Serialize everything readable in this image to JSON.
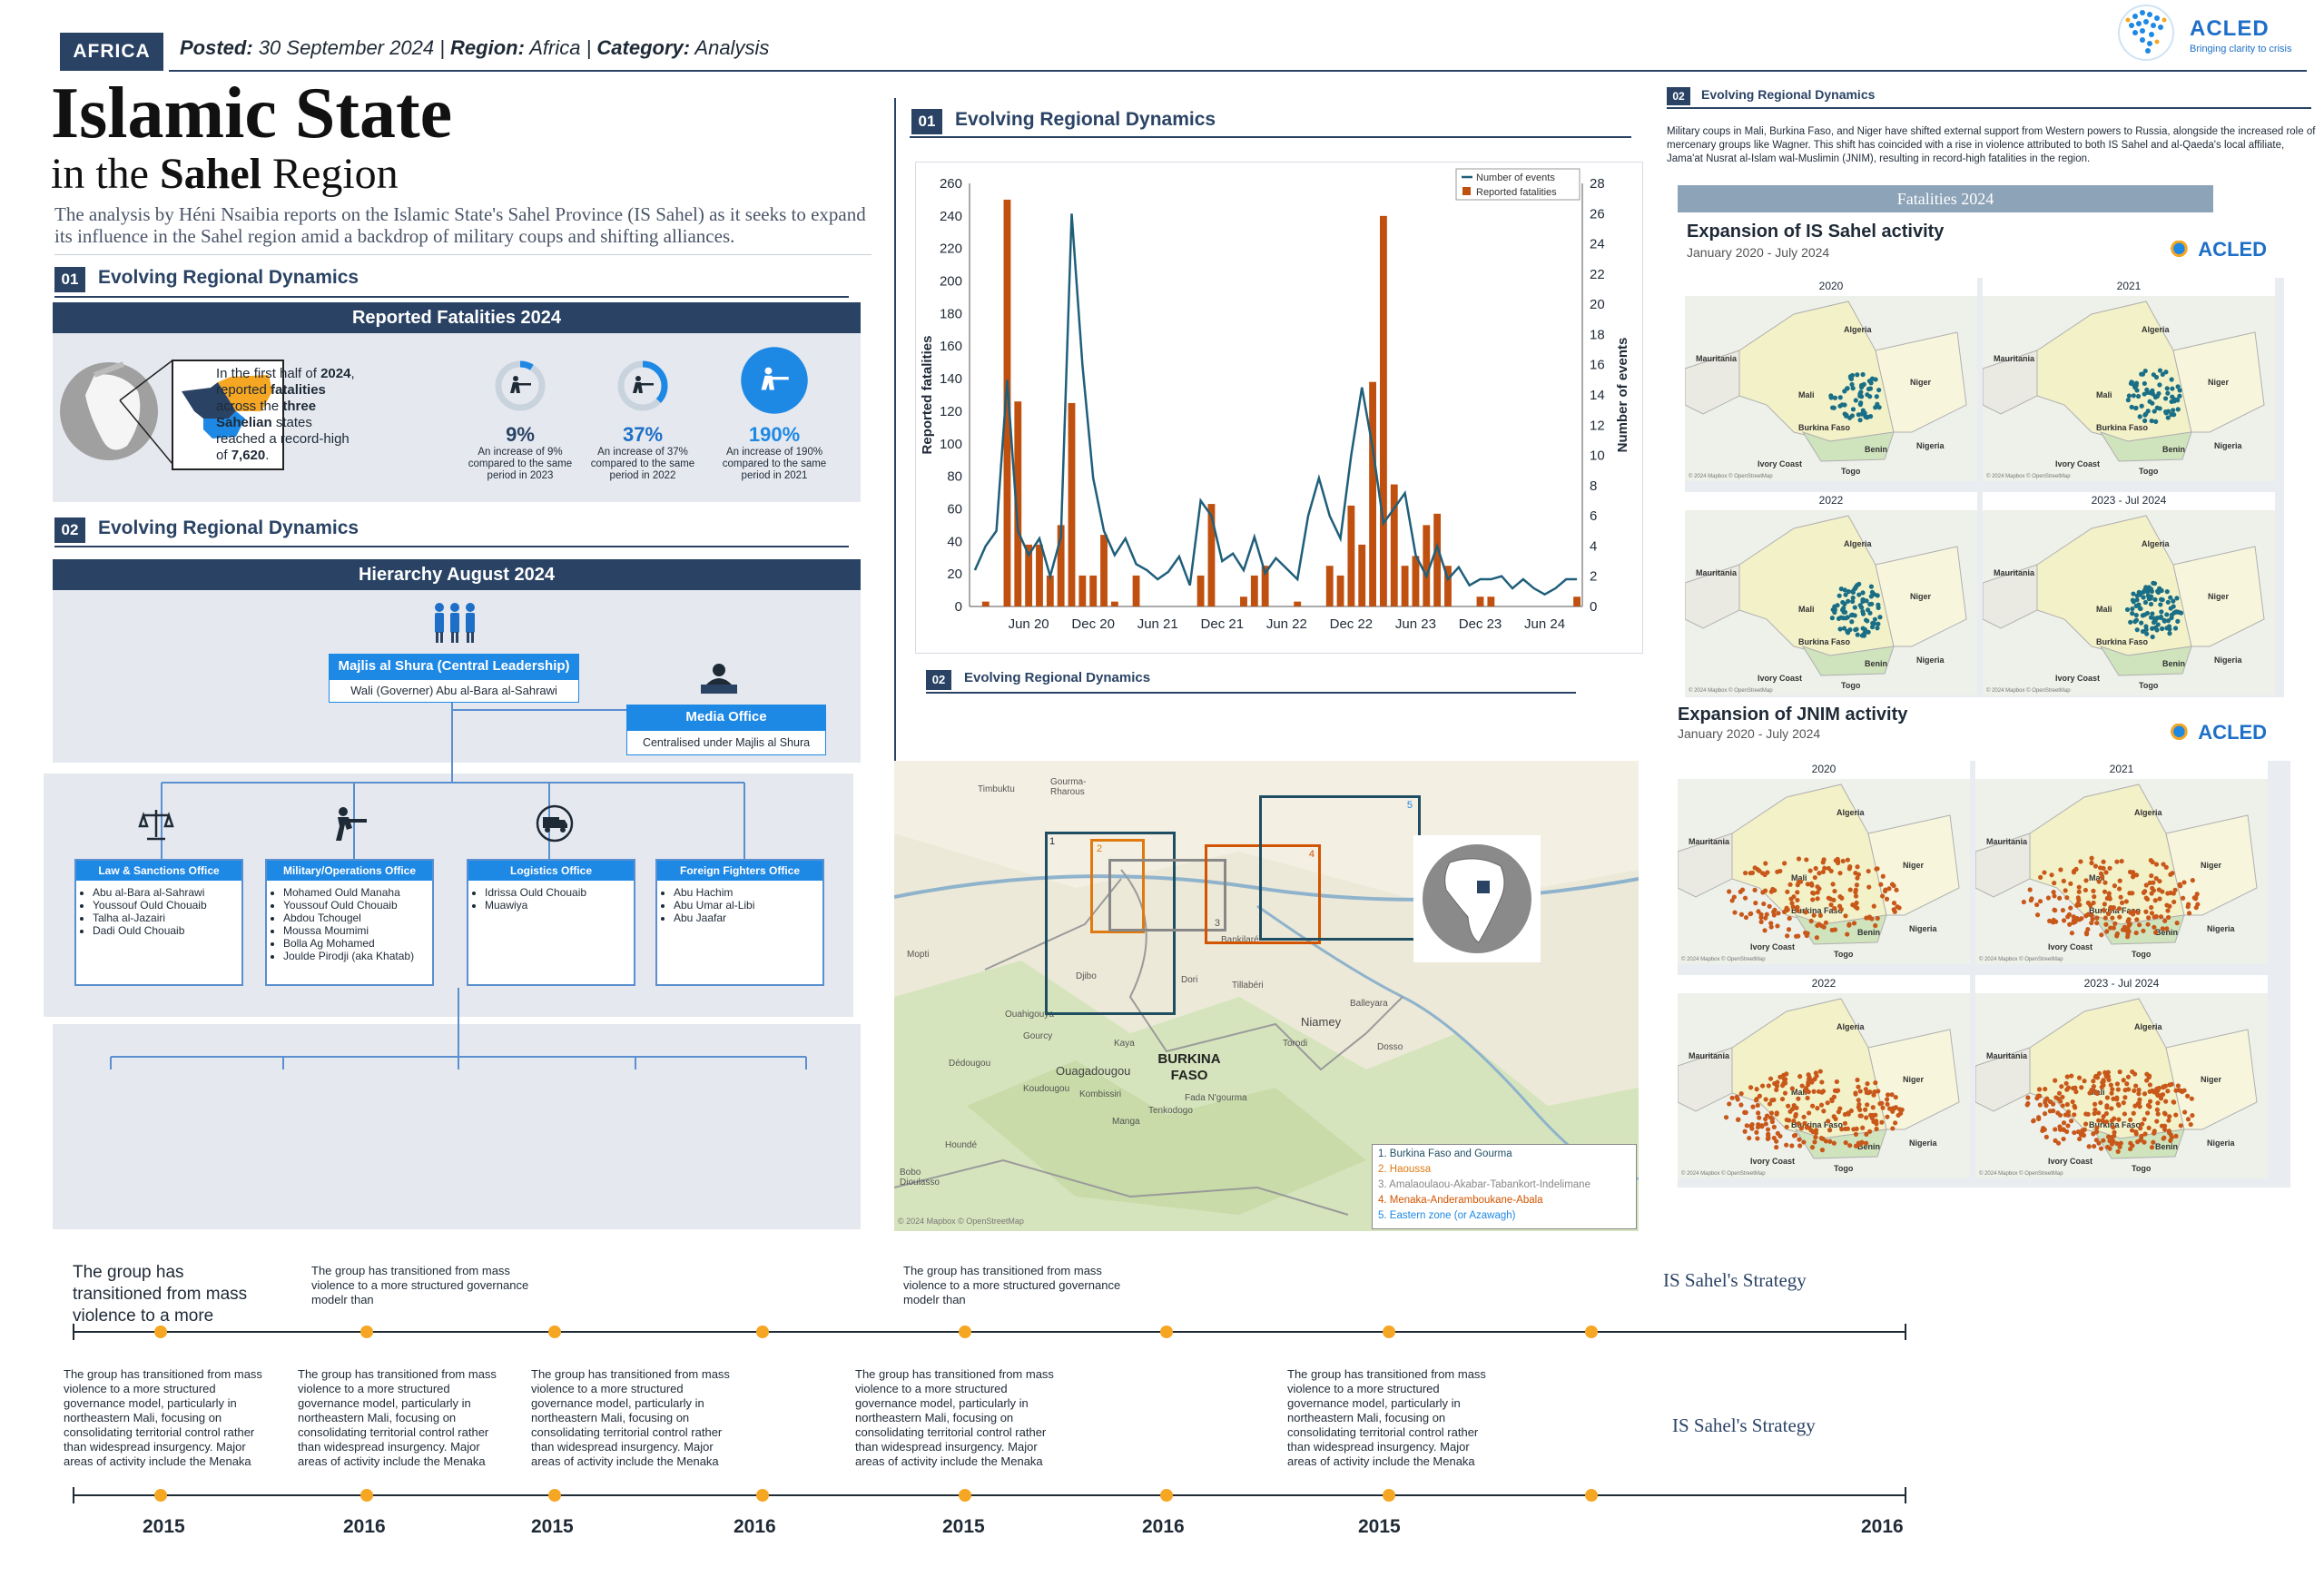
{
  "header": {
    "region_tag": "AFRICA",
    "posted_label": "Posted:",
    "posted_date": "30 September 2024",
    "region_label": "Region:",
    "region_value": "Africa",
    "category_label": "Category:",
    "category_value": "Analysis",
    "logo_name": "ACLED",
    "logo_tagline": "Bringing clarity to crisis"
  },
  "title": {
    "line1": "Islamic State",
    "line2_a": "in the ",
    "line2_b": "Sahel",
    "line2_c": " Region",
    "intro": "The analysis by Héni Nsaibia reports on the Islamic State's Sahel Province (IS Sahel) as it seeks to expand its influence in the Sahel region amid a backdrop of military coups and shifting alliances."
  },
  "section1": {
    "num": "01",
    "title": "Evolving Regional Dynamics",
    "panel_title": "Reported Fatalities 2024",
    "summary_a": "In the first half of ",
    "summary_b": "2024",
    "summary_c": ", reported ",
    "summary_d": "fatalities",
    "summary_e": " across the ",
    "summary_f": "three Sahelian",
    "summary_g": " states reached a record-high of ",
    "summary_h": "7,620",
    "summary_i": ".",
    "stats": [
      {
        "value": "9%",
        "caption": "An increase of 9% compared to the same period in 2023",
        "fraction": 0.09
      },
      {
        "value": "37%",
        "caption": "An increase of 37% compared to the same period in 2022",
        "fraction": 0.37
      },
      {
        "value": "190%",
        "caption": "An increase of 190% compared to the same period in 2021",
        "fraction": 1.0
      }
    ]
  },
  "section2": {
    "num": "02",
    "title": "Evolving Regional Dynamics",
    "panel_title": "Hierarchy August 2024",
    "leadership": "Majlis al Shura (Central Leadership)",
    "wali": "Wali (Governer) Abu al-Bara al-Sahrawi",
    "media_office": "Media Office",
    "media_sub": "Centralised under Majlis al Shura",
    "offices": [
      {
        "title": "Law & Sanctions Office",
        "icon": "scales-icon",
        "members": [
          "Abu al-Bara al-Sahrawi",
          "Youssouf Ould Chouaib",
          "Talha al-Jazairi",
          "Dadi Ould Chouaib"
        ]
      },
      {
        "title": "Military/Operations Office",
        "icon": "soldier-icon",
        "members": [
          "Mohamed Ould Manaha",
          "Youssouf Ould Chouaib",
          "Abdou Tchougel",
          "Moussa Moumimi",
          "Bolla Ag Mohamed",
          "Joulde Pirodji (aka Khatab)"
        ]
      },
      {
        "title": "Logistics Office",
        "icon": "logistics-icon",
        "members": [
          "Idrissa Ould Chouaib",
          "Muawiya"
        ]
      },
      {
        "title": "Foreign Fighters Office",
        "icon": "globe-fighter-icon",
        "members": [
          "Abu Hachim",
          "Abu Umar al-Libi",
          "Abu Jaafar"
        ]
      }
    ]
  },
  "chart_section": {
    "num": "01",
    "title": "Evolving Regional Dynamics"
  },
  "chart_data": {
    "type": "bar",
    "title": "",
    "ylabel": "Reported fatalities",
    "y2label": "Number of events",
    "ylim": [
      0,
      260
    ],
    "y2lim": [
      0,
      28
    ],
    "yticks": [
      0,
      20,
      40,
      60,
      80,
      100,
      120,
      140,
      160,
      180,
      200,
      220,
      240,
      260
    ],
    "y2ticks": [
      0,
      2,
      4,
      6,
      8,
      10,
      12,
      14,
      16,
      18,
      20,
      22,
      24,
      26,
      28
    ],
    "x_tick_labels": [
      "Jun 20",
      "Dec 20",
      "Jun 21",
      "Dec 21",
      "Jun 22",
      "Dec 22",
      "Jun 23",
      "Dec 23",
      "Jun 24"
    ],
    "x_tick_months": [
      5,
      11,
      17,
      23,
      29,
      35,
      41,
      47,
      53
    ],
    "legend": [
      "Number of events",
      "Reported fatalities"
    ],
    "legend_position": "top-right",
    "series": [
      {
        "name": "Reported fatalities",
        "color": "#c0500f",
        "values": [
          0,
          3,
          0,
          250,
          126,
          38,
          38,
          19,
          50,
          125,
          19,
          19,
          44,
          3,
          0,
          19,
          0,
          0,
          0,
          0,
          0,
          19,
          63,
          0,
          0,
          6,
          19,
          25,
          0,
          0,
          3,
          0,
          0,
          25,
          19,
          62,
          38,
          138,
          240,
          75,
          25,
          31,
          50,
          57,
          25,
          0,
          0,
          6,
          6,
          0,
          0,
          0,
          0,
          0,
          0,
          0,
          6
        ]
      },
      {
        "name": "Number of events",
        "color": "#1f5f7a",
        "values": [
          2.4,
          4.0,
          5.0,
          15.0,
          5.0,
          3.4,
          4.5,
          2.0,
          4.6,
          26.0,
          16.0,
          8.5,
          5.0,
          3.4,
          4.5,
          2.8,
          2.4,
          1.8,
          2.3,
          3.3,
          1.4,
          7.0,
          6.0,
          3.0,
          3.5,
          2.4,
          4.6,
          2.2,
          3.2,
          2.5,
          1.8,
          6.0,
          8.5,
          6.0,
          4.5,
          10.0,
          14.5,
          10.5,
          5.5,
          6.5,
          7.5,
          3.4,
          2.0,
          4.0,
          1.8,
          2.6,
          1.4,
          1.8,
          1.8,
          2.0,
          1.2,
          1.8,
          1.2,
          0.8,
          1.2,
          1.8,
          1.8
        ]
      }
    ]
  },
  "map_section": {
    "num": "02",
    "title": "Evolving Regional Dynamics",
    "place_names": [
      "Timbuktu",
      "Gourma-Rharous",
      "Mopti",
      "Djibo",
      "Dori",
      "Bankilaré",
      "Ouahigouya",
      "Gourcy",
      "Kaya",
      "Ouagadougou",
      "Koudougou",
      "Dédougou",
      "Kombissiri",
      "Manga",
      "Tenkodogo",
      "Fada N'gourma",
      "Houndé",
      "Bobo Dioulasso",
      "Niamey",
      "Tillabéri",
      "Balleyara",
      "Dosso",
      "Torodi",
      "BURKINA FASO"
    ],
    "zones": [
      {
        "num": "1",
        "label": "1. Burkina Faso and Gourma",
        "color": "#1f4e63"
      },
      {
        "num": "2",
        "label": "2. Haoussa",
        "color": "#e07a10"
      },
      {
        "num": "3",
        "label": "3. Amalaoulaou-Akabar-Tabankort-Indelimane",
        "color": "#888888"
      },
      {
        "num": "4",
        "label": "4. Menaka-Anderamboukane-Abala",
        "color": "#d35400"
      },
      {
        "num": "5",
        "label": "5. Eastern zone (or Azawagh)",
        "color": "#1e88e5"
      }
    ],
    "attribution": "© 2024 Mapbox © OpenStreetMap"
  },
  "right_column": {
    "num": "02",
    "title": "Evolving Regional Dynamics",
    "text": "Military coups in Mali, Burkina Faso, and Niger have shifted external support from Western powers to Russia, alongside the increased role of mercenary groups like Wagner. This shift has coincided with a rise in violence attributed to both IS Sahel and al-Qaeda's local affiliate, Jama'at Nusrat al-Islam wal-Muslimin (JNIM), resulting in record-high fatalities in the region.",
    "band": "Fatalities 2024",
    "is_title": "Expansion of IS Sahel activity",
    "is_period": "January 2020 - July 2024",
    "jnim_title": "Expansion of JNIM activity",
    "jnim_period": "January 2020 - July 2024",
    "logo": "ACLED",
    "map_years": [
      "2020",
      "2021",
      "2022",
      "2023 - Jul 2024"
    ],
    "country_labels": [
      "Algeria",
      "Mauritania",
      "Mali",
      "Niger",
      "Burkina Faso",
      "Benin",
      "Nigeria",
      "Ivory Coast",
      "Togo"
    ],
    "map_attribution": "© 2024 Mapbox © OpenStreetMap",
    "is_color": "#1a6f86",
    "jnim_color": "#c8581a"
  },
  "timeline": {
    "intro": "The group has transitioned from mass violence to a more",
    "short_text": "The group has transitioned from mass violence to a more structured governance modelr than",
    "long_text": "The group has transitioned from mass violence to a more structured governance model, particularly in northeastern Mali, focusing on consolidating territorial control rather than widespread insurgency. Major areas of activity include the Menaka",
    "strategy_label": "IS Sahel's Strategy",
    "years": [
      "2015",
      "2016",
      "2015",
      "2016",
      "2015",
      "2016",
      "2015",
      "2016"
    ]
  }
}
